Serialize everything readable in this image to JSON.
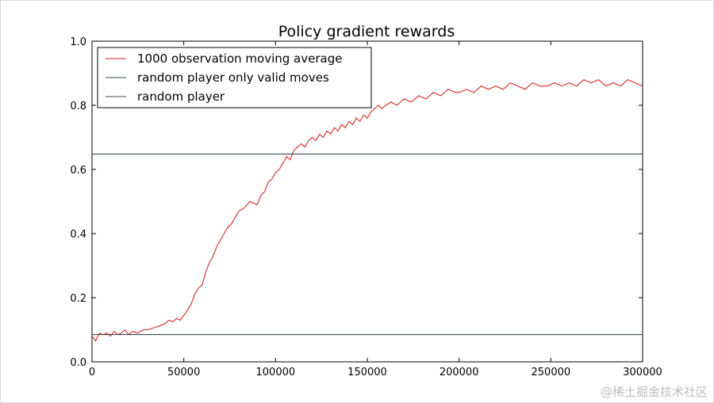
{
  "chart_data": {
    "type": "line",
    "title": "Policy gradient rewards",
    "xlabel": "",
    "ylabel": "",
    "xlim": [
      0,
      300000
    ],
    "ylim": [
      0.0,
      1.0
    ],
    "xticks": [
      "0",
      "50000",
      "100000",
      "150000",
      "200000",
      "250000",
      "300000"
    ],
    "xtick_values": [
      0,
      50000,
      100000,
      150000,
      200000,
      250000,
      300000
    ],
    "yticks": [
      "0.0",
      "0.2",
      "0.4",
      "0.6",
      "0.8",
      "1.0"
    ],
    "ytick_values": [
      0.0,
      0.2,
      0.4,
      0.6,
      0.8,
      1.0
    ],
    "grid": false,
    "legend_position": "top-left",
    "series": [
      {
        "name": "1000 observation moving average",
        "color": "#d62728",
        "style": "solid",
        "x": [
          0,
          2000,
          4000,
          6000,
          8000,
          10000,
          12000,
          14000,
          16000,
          18000,
          20000,
          22000,
          25000,
          28000,
          30000,
          33000,
          36000,
          40000,
          42000,
          44000,
          46000,
          48000,
          50000,
          52000,
          54000,
          56000,
          58000,
          60000,
          62000,
          64000,
          66000,
          68000,
          70000,
          72000,
          74000,
          76000,
          78000,
          80000,
          83000,
          86000,
          90000,
          92000,
          94000,
          96000,
          98000,
          100000,
          102000,
          104000,
          106000,
          108000,
          110000,
          112000,
          114000,
          116000,
          118000,
          120000,
          122000,
          124000,
          126000,
          128000,
          130000,
          132000,
          134000,
          136000,
          138000,
          140000,
          142000,
          144000,
          146000,
          148000,
          150000,
          152000,
          154000,
          156000,
          158000,
          160000,
          163000,
          166000,
          170000,
          174000,
          178000,
          182000,
          186000,
          190000,
          194000,
          198000,
          200000,
          204000,
          208000,
          212000,
          216000,
          220000,
          224000,
          228000,
          232000,
          236000,
          240000,
          244000,
          248000,
          252000,
          256000,
          260000,
          264000,
          268000,
          272000,
          276000,
          280000,
          284000,
          288000,
          292000,
          296000,
          300000
        ],
        "y": [
          0.08,
          0.065,
          0.09,
          0.085,
          0.09,
          0.08,
          0.095,
          0.085,
          0.09,
          0.1,
          0.085,
          0.095,
          0.09,
          0.1,
          0.1,
          0.105,
          0.11,
          0.12,
          0.13,
          0.125,
          0.135,
          0.13,
          0.145,
          0.16,
          0.18,
          0.21,
          0.23,
          0.24,
          0.28,
          0.31,
          0.33,
          0.36,
          0.38,
          0.4,
          0.42,
          0.43,
          0.45,
          0.47,
          0.48,
          0.5,
          0.49,
          0.52,
          0.53,
          0.56,
          0.57,
          0.59,
          0.6,
          0.62,
          0.64,
          0.63,
          0.66,
          0.67,
          0.68,
          0.67,
          0.69,
          0.7,
          0.69,
          0.71,
          0.7,
          0.72,
          0.71,
          0.73,
          0.72,
          0.74,
          0.73,
          0.75,
          0.74,
          0.76,
          0.75,
          0.77,
          0.76,
          0.78,
          0.79,
          0.8,
          0.79,
          0.8,
          0.81,
          0.8,
          0.82,
          0.81,
          0.83,
          0.82,
          0.84,
          0.83,
          0.85,
          0.84,
          0.84,
          0.85,
          0.84,
          0.86,
          0.85,
          0.86,
          0.85,
          0.87,
          0.86,
          0.85,
          0.87,
          0.86,
          0.86,
          0.87,
          0.86,
          0.87,
          0.86,
          0.88,
          0.87,
          0.88,
          0.86,
          0.87,
          0.86,
          0.88,
          0.87,
          0.86
        ]
      },
      {
        "name": "random player only valid moves",
        "color": "#3f4a56",
        "style": "solid",
        "x": [
          0,
          300000
        ],
        "y": [
          0.648,
          0.648
        ]
      },
      {
        "name": "random player",
        "color": "#3f4a56",
        "style": "solid",
        "x": [
          0,
          300000
        ],
        "y": [
          0.085,
          0.085
        ]
      }
    ]
  },
  "watermark": "@稀土掘金技术社区"
}
